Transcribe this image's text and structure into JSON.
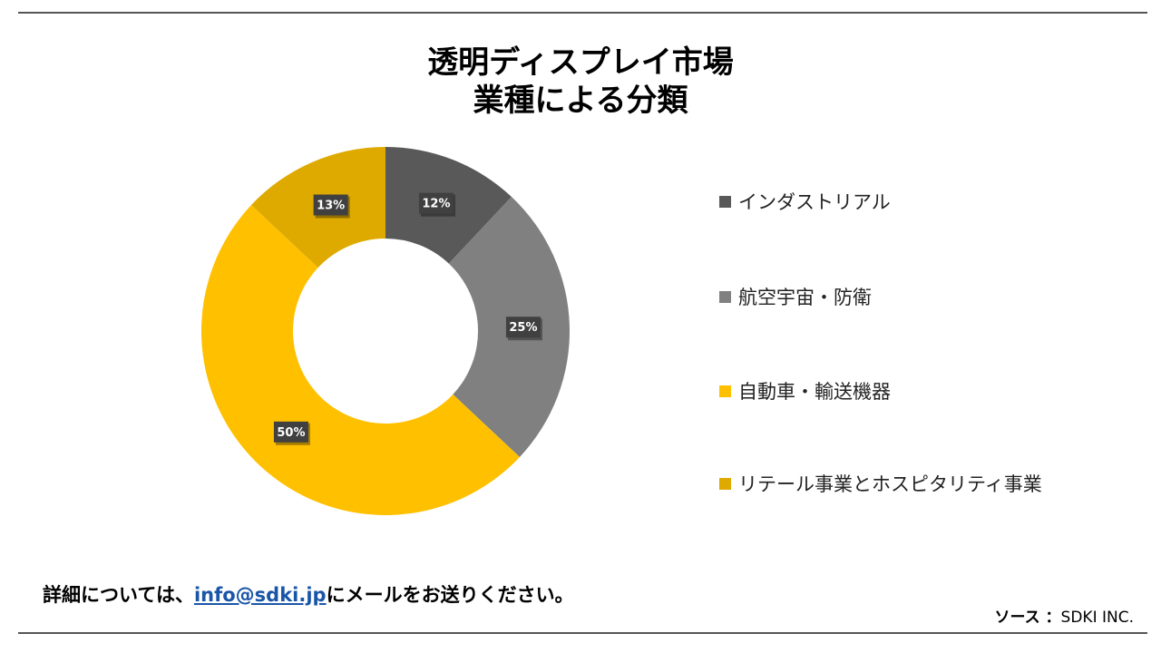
{
  "title_line1": "透明ディスプレイ市場",
  "title_line2": "業種による分類",
  "chart_data": {
    "type": "pie",
    "donut": true,
    "title": "透明ディスプレイ市場 業種による分類",
    "categories": [
      "インダストリアル",
      "航空宇宙・防衛",
      "自動車・輸送機器",
      "リテール事業とホスピタリティ事業"
    ],
    "values": [
      12,
      25,
      50,
      13
    ],
    "labels": [
      "12%",
      "25%",
      "50%",
      "13%"
    ],
    "colors": [
      "#595959",
      "#808080",
      "#ffc000",
      "#deaa00"
    ],
    "legend_position": "right"
  },
  "footer": {
    "prefix": "詳細については、",
    "email": "info@sdki.jp",
    "suffix": "にメールをお送りください。"
  },
  "source": {
    "label": "ソース ：",
    "value": "SDKI INC."
  }
}
